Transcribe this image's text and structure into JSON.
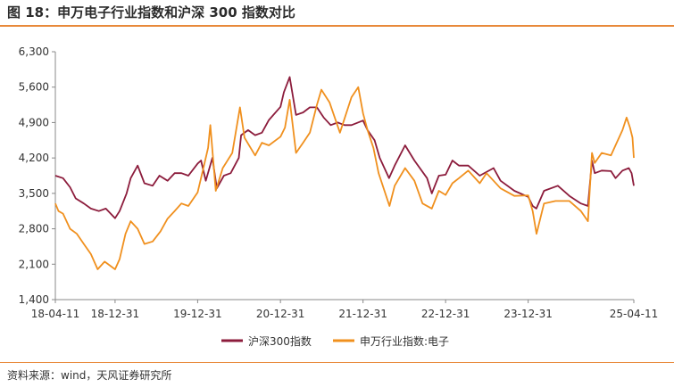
{
  "figure": {
    "title": "图 18：申万电子行业指数和沪深 300 指数对比",
    "source": "资料来源：wind，天风证券研究所"
  },
  "colors": {
    "accent": "#e8893a",
    "hs300": "#8c1c3c",
    "electronics": "#f0901e",
    "axis": "#888888"
  },
  "chart_data": {
    "type": "line",
    "ylim": [
      1400,
      6300
    ],
    "yticks": [
      1400,
      2100,
      2800,
      3500,
      4200,
      4900,
      5600,
      6300
    ],
    "ytick_labels": [
      "1,400",
      "2,100",
      "2,800",
      "3,500",
      "4,200",
      "4,900",
      "5,600",
      "6,300"
    ],
    "xticks": [
      "2018-04-11",
      "2018-12-31",
      "2019-12-31",
      "2020-12-31",
      "2021-12-31",
      "2022-12-31",
      "2023-12-31",
      "2025-04-11"
    ],
    "xtick_labels": [
      "18-04-11",
      "18-12-31",
      "19-12-31",
      "20-12-31",
      "21-12-31",
      "22-12-31",
      "23-12-31",
      "25-04-11"
    ],
    "legend_position": "bottom-center",
    "series": [
      {
        "name": "沪深300指数",
        "color": "#8c1c3c",
        "points": [
          [
            "2018-04-11",
            3850
          ],
          [
            "2018-05-15",
            3800
          ],
          [
            "2018-06-15",
            3620
          ],
          [
            "2018-07-10",
            3400
          ],
          [
            "2018-08-15",
            3300
          ],
          [
            "2018-09-15",
            3200
          ],
          [
            "2018-10-20",
            3150
          ],
          [
            "2018-11-20",
            3200
          ],
          [
            "2018-12-31",
            3010
          ],
          [
            "2019-01-20",
            3150
          ],
          [
            "2019-02-20",
            3500
          ],
          [
            "2019-03-10",
            3800
          ],
          [
            "2019-04-10",
            4050
          ],
          [
            "2019-05-10",
            3700
          ],
          [
            "2019-06-15",
            3650
          ],
          [
            "2019-07-15",
            3850
          ],
          [
            "2019-08-20",
            3750
          ],
          [
            "2019-09-20",
            3900
          ],
          [
            "2019-10-20",
            3900
          ],
          [
            "2019-11-20",
            3850
          ],
          [
            "2019-12-31",
            4090
          ],
          [
            "2020-01-15",
            4150
          ],
          [
            "2020-02-05",
            3750
          ],
          [
            "2020-03-05",
            4200
          ],
          [
            "2020-03-25",
            3600
          ],
          [
            "2020-04-25",
            3850
          ],
          [
            "2020-05-25",
            3900
          ],
          [
            "2020-06-30",
            4200
          ],
          [
            "2020-07-10",
            4650
          ],
          [
            "2020-08-10",
            4750
          ],
          [
            "2020-09-10",
            4650
          ],
          [
            "2020-10-10",
            4700
          ],
          [
            "2020-11-10",
            4950
          ],
          [
            "2020-12-31",
            5210
          ],
          [
            "2021-01-15",
            5500
          ],
          [
            "2021-02-10",
            5800
          ],
          [
            "2021-03-10",
            5050
          ],
          [
            "2021-04-10",
            5100
          ],
          [
            "2021-05-10",
            5200
          ],
          [
            "2021-06-10",
            5200
          ],
          [
            "2021-07-10",
            5000
          ],
          [
            "2021-08-10",
            4850
          ],
          [
            "2021-09-10",
            4900
          ],
          [
            "2021-10-10",
            4850
          ],
          [
            "2021-11-10",
            4850
          ],
          [
            "2021-12-31",
            4940
          ],
          [
            "2022-01-20",
            4750
          ],
          [
            "2022-02-20",
            4550
          ],
          [
            "2022-03-15",
            4200
          ],
          [
            "2022-04-25",
            3800
          ],
          [
            "2022-05-20",
            4050
          ],
          [
            "2022-07-05",
            4450
          ],
          [
            "2022-08-15",
            4150
          ],
          [
            "2022-10-10",
            3800
          ],
          [
            "2022-10-31",
            3500
          ],
          [
            "2022-12-01",
            3850
          ],
          [
            "2022-12-31",
            3870
          ],
          [
            "2023-01-30",
            4150
          ],
          [
            "2023-02-28",
            4050
          ],
          [
            "2023-04-10",
            4050
          ],
          [
            "2023-05-31",
            3850
          ],
          [
            "2023-07-31",
            4000
          ],
          [
            "2023-08-31",
            3750
          ],
          [
            "2023-10-31",
            3550
          ],
          [
            "2023-12-31",
            3430
          ],
          [
            "2024-01-20",
            3250
          ],
          [
            "2024-02-05",
            3200
          ],
          [
            "2024-03-10",
            3550
          ],
          [
            "2024-05-10",
            3650
          ],
          [
            "2024-06-30",
            3450
          ],
          [
            "2024-08-20",
            3300
          ],
          [
            "2024-09-20",
            3250
          ],
          [
            "2024-10-08",
            4150
          ],
          [
            "2024-10-20",
            3900
          ],
          [
            "2024-11-20",
            3950
          ],
          [
            "2024-12-31",
            3940
          ],
          [
            "2025-01-20",
            3800
          ],
          [
            "2025-02-20",
            3950
          ],
          [
            "2025-03-20",
            4000
          ],
          [
            "2025-04-01",
            3900
          ],
          [
            "2025-04-11",
            3650
          ]
        ]
      },
      {
        "name": "申万行业指数:电子",
        "color": "#f0901e",
        "points": [
          [
            "2018-04-11",
            3300
          ],
          [
            "2018-04-25",
            3150
          ],
          [
            "2018-05-15",
            3100
          ],
          [
            "2018-06-15",
            2800
          ],
          [
            "2018-07-15",
            2700
          ],
          [
            "2018-08-15",
            2500
          ],
          [
            "2018-09-15",
            2300
          ],
          [
            "2018-10-15",
            2000
          ],
          [
            "2018-11-15",
            2150
          ],
          [
            "2018-12-31",
            2000
          ],
          [
            "2019-01-20",
            2200
          ],
          [
            "2019-02-15",
            2700
          ],
          [
            "2019-03-10",
            2950
          ],
          [
            "2019-04-10",
            2800
          ],
          [
            "2019-05-10",
            2500
          ],
          [
            "2019-06-15",
            2550
          ],
          [
            "2019-07-20",
            2750
          ],
          [
            "2019-08-20",
            3000
          ],
          [
            "2019-09-20",
            3150
          ],
          [
            "2019-10-20",
            3300
          ],
          [
            "2019-11-20",
            3250
          ],
          [
            "2019-12-31",
            3520
          ],
          [
            "2020-01-20",
            3900
          ],
          [
            "2020-02-15",
            4400
          ],
          [
            "2020-02-25",
            4850
          ],
          [
            "2020-03-20",
            3550
          ],
          [
            "2020-04-20",
            4000
          ],
          [
            "2020-06-01",
            4300
          ],
          [
            "2020-07-05",
            5200
          ],
          [
            "2020-07-25",
            4600
          ],
          [
            "2020-09-10",
            4250
          ],
          [
            "2020-10-10",
            4500
          ],
          [
            "2020-11-10",
            4450
          ],
          [
            "2020-12-31",
            4620
          ],
          [
            "2021-01-20",
            4800
          ],
          [
            "2021-02-10",
            5350
          ],
          [
            "2021-03-10",
            4300
          ],
          [
            "2021-04-10",
            4500
          ],
          [
            "2021-05-10",
            4700
          ],
          [
            "2021-06-10",
            5250
          ],
          [
            "2021-06-30",
            5550
          ],
          [
            "2021-08-05",
            5300
          ],
          [
            "2021-09-20",
            4700
          ],
          [
            "2021-11-10",
            5400
          ],
          [
            "2021-12-10",
            5600
          ],
          [
            "2021-12-31",
            5080
          ],
          [
            "2022-01-20",
            4750
          ],
          [
            "2022-02-15",
            4400
          ],
          [
            "2022-03-10",
            3900
          ],
          [
            "2022-04-27",
            3250
          ],
          [
            "2022-05-20",
            3650
          ],
          [
            "2022-07-05",
            4000
          ],
          [
            "2022-08-15",
            3750
          ],
          [
            "2022-09-20",
            3300
          ],
          [
            "2022-10-31",
            3200
          ],
          [
            "2022-12-01",
            3550
          ],
          [
            "2022-12-31",
            3470
          ],
          [
            "2023-01-30",
            3700
          ],
          [
            "2023-02-28",
            3800
          ],
          [
            "2023-04-10",
            3950
          ],
          [
            "2023-05-31",
            3700
          ],
          [
            "2023-06-30",
            3900
          ],
          [
            "2023-08-31",
            3600
          ],
          [
            "2023-10-31",
            3450
          ],
          [
            "2023-12-31",
            3460
          ],
          [
            "2024-01-20",
            3150
          ],
          [
            "2024-02-06",
            2700
          ],
          [
            "2024-03-10",
            3300
          ],
          [
            "2024-04-30",
            3350
          ],
          [
            "2024-06-30",
            3350
          ],
          [
            "2024-08-20",
            3150
          ],
          [
            "2024-09-20",
            2950
          ],
          [
            "2024-10-08",
            4300
          ],
          [
            "2024-10-20",
            4100
          ],
          [
            "2024-11-20",
            4300
          ],
          [
            "2024-12-31",
            4250
          ],
          [
            "2025-01-20",
            4450
          ],
          [
            "2025-02-20",
            4750
          ],
          [
            "2025-03-10",
            5000
          ],
          [
            "2025-03-25",
            4800
          ],
          [
            "2025-04-05",
            4600
          ],
          [
            "2025-04-11",
            4200
          ]
        ]
      }
    ]
  }
}
